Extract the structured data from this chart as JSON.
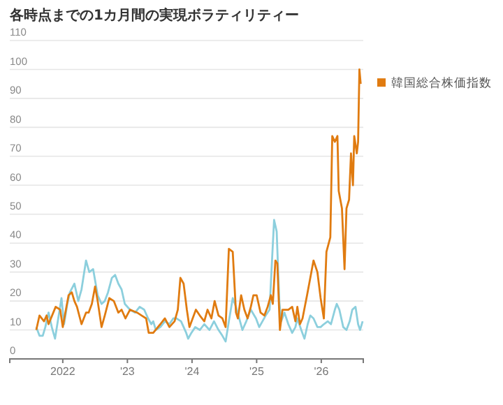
{
  "chart_data": {
    "type": "line",
    "title": "各時点までの1カ月間の実現ボラティリティー",
    "xlim": [
      2021.18,
      2026.65
    ],
    "xticks": [
      {
        "value": 2022,
        "label": "2022"
      },
      {
        "value": 2023,
        "label": "'23"
      },
      {
        "value": 2024,
        "label": "'24"
      },
      {
        "value": 2025,
        "label": "'25"
      },
      {
        "value": 2026,
        "label": "'26"
      }
    ],
    "ylim": [
      0,
      110
    ],
    "yticks": [
      0,
      10,
      20,
      30,
      40,
      50,
      60,
      70,
      80,
      90,
      100,
      110
    ],
    "grid": "y",
    "legend": "right",
    "series": [
      {
        "name": "韓国総合株価指数",
        "color": "#e07b10",
        "x": [
          2021.59,
          2021.64,
          2021.71,
          2021.75,
          2021.78,
          2021.89,
          2021.96,
          2022.0,
          2022.04,
          2022.09,
          2022.14,
          2022.18,
          2022.22,
          2022.29,
          2022.36,
          2022.4,
          2022.45,
          2022.5,
          2022.54,
          2022.6,
          2022.65,
          2022.72,
          2022.79,
          2022.86,
          2022.91,
          2022.97,
          2023.04,
          2023.15,
          2023.22,
          2023.29,
          2023.33,
          2023.4,
          2023.51,
          2023.58,
          2023.65,
          2023.73,
          2023.78,
          2023.82,
          2023.87,
          2023.92,
          2023.96,
          2024.01,
          2024.06,
          2024.12,
          2024.19,
          2024.24,
          2024.3,
          2024.35,
          2024.41,
          2024.47,
          2024.52,
          2024.57,
          2024.63,
          2024.68,
          2024.71,
          2024.76,
          2024.81,
          2024.86,
          2024.91,
          2024.95,
          2025.0,
          2025.06,
          2025.12,
          2025.17,
          2025.22,
          2025.25,
          2025.29,
          2025.32,
          2025.36,
          2025.4,
          2025.49,
          2025.55,
          2025.6,
          2025.63,
          2025.67,
          2025.71,
          2025.78,
          2025.83,
          2025.88,
          2025.94,
          2025.99,
          2026.04,
          2026.08,
          2026.14,
          2026.17,
          2026.21,
          2026.25,
          2026.27,
          2026.32,
          2026.36,
          2026.39,
          2026.43,
          2026.46,
          2026.49,
          2026.51,
          2026.55,
          2026.57,
          2026.59,
          2026.61
        ],
        "values": [
          10,
          15,
          13,
          15,
          12,
          18,
          17,
          11,
          16,
          22,
          23,
          20,
          18,
          12,
          16,
          16,
          19,
          25,
          20,
          11,
          15,
          21,
          20,
          16,
          17,
          14,
          17,
          16,
          15,
          14,
          9,
          9,
          12,
          14,
          11,
          13,
          17,
          28,
          26,
          17,
          11,
          14,
          17,
          15,
          13,
          17,
          14,
          20,
          15,
          14,
          11,
          38,
          37,
          16,
          14,
          22,
          17,
          14,
          18,
          22,
          22,
          16,
          15,
          18,
          22,
          19,
          34,
          33,
          10,
          17,
          17,
          18,
          13,
          18,
          12,
          14,
          22,
          28,
          34,
          30,
          21,
          14,
          37,
          42,
          77,
          75,
          77,
          58,
          52,
          31,
          52,
          55,
          71,
          60,
          77,
          71,
          75,
          100,
          95
        ]
      },
      {
        "color": "#8ccfdd",
        "x": [
          2021.59,
          2021.64,
          2021.69,
          2021.73,
          2021.78,
          2021.83,
          2021.88,
          2021.93,
          2021.98,
          2022.02,
          2022.07,
          2022.11,
          2022.18,
          2022.24,
          2022.29,
          2022.36,
          2022.41,
          2022.47,
          2022.54,
          2022.6,
          2022.65,
          2022.7,
          2022.76,
          2022.81,
          2022.86,
          2022.91,
          2022.96,
          2023.04,
          2023.12,
          2023.19,
          2023.26,
          2023.32,
          2023.37,
          2023.4,
          2023.44,
          2023.51,
          2023.58,
          2023.65,
          2023.71,
          2023.76,
          2023.83,
          2023.91,
          2023.94,
          2023.99,
          2024.05,
          2024.12,
          2024.19,
          2024.27,
          2024.34,
          2024.41,
          2024.47,
          2024.52,
          2024.57,
          2024.63,
          2024.68,
          2024.73,
          2024.78,
          2024.84,
          2024.91,
          2024.99,
          2025.04,
          2025.09,
          2025.14,
          2025.2,
          2025.24,
          2025.27,
          2025.31,
          2025.35,
          2025.38,
          2025.43,
          2025.49,
          2025.55,
          2025.6,
          2025.63,
          2025.69,
          2025.74,
          2025.79,
          2025.83,
          2025.88,
          2025.94,
          2025.99,
          2026.04,
          2026.1,
          2026.15,
          2026.21,
          2026.24,
          2026.28,
          2026.34,
          2026.39,
          2026.44,
          2026.48,
          2026.53,
          2026.57,
          2026.6,
          2026.64
        ],
        "values": [
          11,
          8,
          8,
          11,
          16,
          11,
          7,
          14,
          21,
          12,
          19,
          23,
          26,
          20,
          24,
          34,
          30,
          31,
          22,
          19,
          20,
          23,
          28,
          29,
          26,
          24,
          19,
          17,
          16,
          18,
          17,
          14,
          12,
          13,
          10,
          11,
          13,
          12,
          14,
          14,
          13,
          9,
          7,
          9,
          11,
          10,
          12,
          10,
          13,
          10,
          8,
          6,
          13,
          21,
          18,
          14,
          10,
          13,
          17,
          14,
          11,
          13,
          15,
          17,
          35,
          48,
          44,
          20,
          13,
          16,
          12,
          9,
          11,
          14,
          10,
          7,
          12,
          15,
          14,
          11,
          11,
          12,
          13,
          12,
          17,
          19,
          17,
          11,
          10,
          13,
          17,
          18,
          12,
          10,
          13
        ]
      }
    ]
  }
}
